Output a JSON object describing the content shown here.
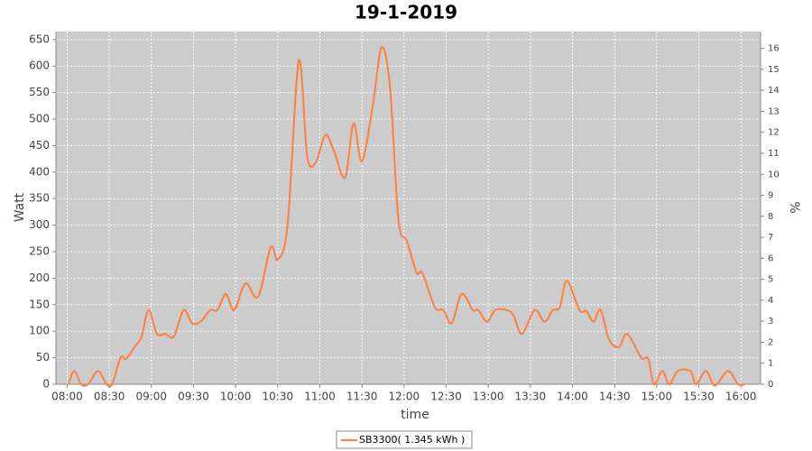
{
  "chart_data": {
    "type": "line",
    "title": "19-1-2019",
    "x_label": "time",
    "y_label": "Watt",
    "y2_label": "%",
    "x": [
      "08:01",
      "08:05",
      "08:10",
      "08:15",
      "08:22",
      "08:28",
      "08:32",
      "08:38",
      "08:42",
      "08:48",
      "08:53",
      "08:58",
      "09:04",
      "09:10",
      "09:16",
      "09:23",
      "09:29",
      "09:35",
      "09:42",
      "09:47",
      "09:53",
      "09:59",
      "10:07",
      "10:16",
      "10:25",
      "10:30",
      "10:37",
      "10:45",
      "10:51",
      "10:57",
      "11:04",
      "11:10",
      "11:18",
      "11:24",
      "11:30",
      "11:38",
      "11:44",
      "11:50",
      "11:56",
      "12:02",
      "12:09",
      "12:13",
      "12:22",
      "12:28",
      "12:34",
      "12:41",
      "12:49",
      "12:53",
      "12:59",
      "13:05",
      "13:13",
      "13:18",
      "13:24",
      "13:33",
      "13:40",
      "13:46",
      "13:51",
      "13:56",
      "14:05",
      "14:10",
      "14:15",
      "14:20",
      "14:26",
      "14:33",
      "14:39",
      "14:49",
      "14:54",
      "14:58",
      "15:04",
      "15:09",
      "15:15",
      "15:24",
      "15:28",
      "15:35",
      "15:40",
      "15:43",
      "15:51",
      "15:58",
      "16:03"
    ],
    "series": [
      {
        "name": "SB3300( 1.345 kWh )",
        "color": "#ff7f3f",
        "values": [
          0,
          25,
          0,
          0,
          25,
          0,
          0,
          50,
          48,
          70,
          90,
          140,
          95,
          95,
          90,
          140,
          115,
          118,
          140,
          140,
          170,
          140,
          190,
          165,
          258,
          235,
          300,
          610,
          430,
          418,
          470,
          440,
          390,
          492,
          420,
          530,
          635,
          560,
          310,
          270,
          210,
          210,
          145,
          140,
          115,
          170,
          140,
          140,
          118,
          140,
          140,
          130,
          95,
          140,
          118,
          140,
          145,
          195,
          140,
          138,
          118,
          140,
          85,
          70,
          95,
          50,
          48,
          0,
          25,
          0,
          25,
          25,
          0,
          25,
          0,
          0,
          25,
          0,
          0
        ]
      }
    ],
    "xlim": [
      "07:52",
      "16:14"
    ],
    "xticks": [
      "08:00",
      "08:30",
      "09:00",
      "09:30",
      "10:00",
      "10:30",
      "11:00",
      "11:30",
      "12:00",
      "12:30",
      "13:00",
      "13:30",
      "14:00",
      "14:30",
      "15:00",
      "15:30",
      "16:00"
    ],
    "ylim": [
      0,
      665
    ],
    "yticks": [
      0,
      50,
      100,
      150,
      200,
      250,
      300,
      350,
      400,
      450,
      500,
      550,
      600,
      650
    ],
    "y2lim": [
      0,
      16.8
    ],
    "y2ticks": [
      0,
      1,
      2,
      3,
      4,
      5,
      6,
      7,
      8,
      9,
      10,
      11,
      12,
      13,
      14,
      15,
      16
    ],
    "grid": true
  }
}
